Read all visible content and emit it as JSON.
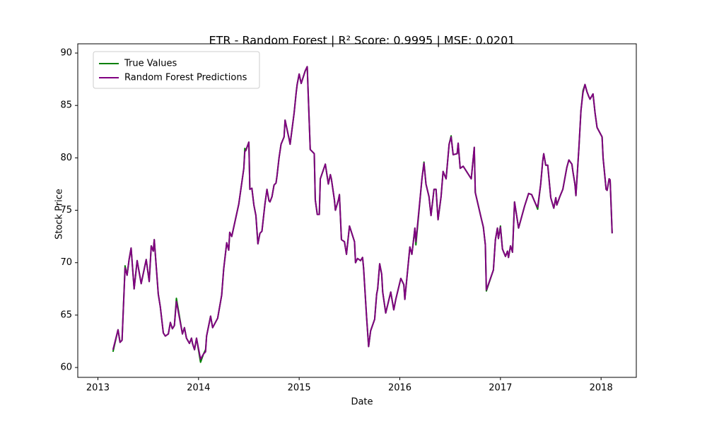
{
  "chart_data": {
    "type": "line",
    "title": "ETR - Random Forest | R² Score: 0.9995 | MSE: 0.0201",
    "xlabel": "Date",
    "ylabel": "Stock Price",
    "xlim": [
      2012.8,
      2018.35
    ],
    "ylim": [
      59.06,
      90.88
    ],
    "xticks": [
      2013,
      2014,
      2015,
      2016,
      2017,
      2018
    ],
    "yticks": [
      60,
      65,
      70,
      75,
      80,
      85,
      90
    ],
    "grid": false,
    "legend": "upper left",
    "x": [
      2013.15,
      2013.2,
      2013.22,
      2013.24,
      2013.27,
      2013.29,
      2013.31,
      2013.33,
      2013.36,
      2013.39,
      2013.43,
      2013.48,
      2013.51,
      2013.53,
      2013.55,
      2013.56,
      2013.6,
      2013.62,
      2013.65,
      2013.67,
      2013.7,
      2013.72,
      2013.74,
      2013.76,
      2013.78,
      2013.84,
      2013.86,
      2013.88,
      2013.91,
      2013.93,
      2013.94,
      2013.96,
      2013.98,
      2014.02,
      2014.05,
      2014.07,
      2014.08,
      2014.12,
      2014.14,
      2014.19,
      2014.23,
      2014.25,
      2014.28,
      2014.3,
      2014.31,
      2014.33,
      2014.4,
      2014.45,
      2014.46,
      2014.47,
      2014.5,
      2014.51,
      2014.53,
      2014.55,
      2014.57,
      2014.59,
      2014.61,
      2014.63,
      2014.66,
      2014.68,
      2014.7,
      2014.71,
      2014.73,
      2014.75,
      2014.77,
      2014.78,
      2014.8,
      2014.82,
      2014.85,
      2014.86,
      2014.9,
      2014.91,
      2014.95,
      2014.97,
      2014.98,
      2015.0,
      2015.02,
      2015.04,
      2015.06,
      2015.08,
      2015.11,
      2015.15,
      2015.16,
      2015.18,
      2015.2,
      2015.21,
      2015.26,
      2015.29,
      2015.31,
      2015.32,
      2015.35,
      2015.36,
      2015.39,
      2015.4,
      2015.42,
      2015.45,
      2015.47,
      2015.5,
      2015.55,
      2015.56,
      2015.58,
      2015.61,
      2015.63,
      2015.64,
      2015.67,
      2015.69,
      2015.71,
      2015.75,
      2015.77,
      2015.78,
      2015.8,
      2015.82,
      2015.83,
      2015.86,
      2015.89,
      2015.91,
      2015.94,
      2015.96,
      2016.01,
      2016.04,
      2016.05,
      2016.08,
      2016.1,
      2016.12,
      2016.15,
      2016.16,
      2016.22,
      2016.24,
      2016.26,
      2016.29,
      2016.31,
      2016.34,
      2016.36,
      2016.38,
      2016.41,
      2016.43,
      2016.46,
      2016.49,
      2016.51,
      2016.53,
      2016.57,
      2016.58,
      2016.6,
      2016.63,
      2016.71,
      2016.74,
      2016.75,
      2016.81,
      2016.83,
      2016.85,
      2016.86,
      2016.93,
      2016.95,
      2016.97,
      2016.98,
      2017.0,
      2017.02,
      2017.05,
      2017.07,
      2017.08,
      2017.1,
      2017.12,
      2017.14,
      2017.18,
      2017.2,
      2017.24,
      2017.28,
      2017.31,
      2017.35,
      2017.37,
      2017.4,
      2017.42,
      2017.43,
      2017.45,
      2017.47,
      2017.5,
      2017.53,
      2017.55,
      2017.56,
      2017.59,
      2017.62,
      2017.66,
      2017.68,
      2017.71,
      2017.72,
      2017.74,
      2017.75,
      2017.78,
      2017.8,
      2017.82,
      2017.84,
      2017.86,
      2017.88,
      2017.89,
      2017.92,
      2017.94,
      2017.96,
      2018.01,
      2018.02,
      2018.05,
      2018.06,
      2018.08,
      2018.09,
      2018.11
    ],
    "series": [
      {
        "name": "True Values",
        "color": "#008000",
        "values": [
          61.5,
          63.6,
          62.4,
          62.6,
          69.7,
          68.8,
          70.3,
          71.4,
          67.5,
          70.2,
          68.0,
          70.3,
          68.2,
          71.6,
          71.1,
          72.2,
          67.0,
          65.8,
          63.3,
          63.0,
          63.2,
          64.3,
          63.7,
          64.0,
          66.6,
          63.2,
          63.8,
          62.8,
          62.3,
          62.8,
          62.3,
          61.7,
          62.8,
          60.5,
          61.3,
          61.7,
          63.0,
          64.9,
          63.8,
          64.7,
          66.9,
          69.4,
          71.9,
          71.2,
          72.9,
          72.5,
          75.6,
          79.0,
          80.9,
          80.7,
          81.5,
          77.0,
          77.1,
          75.5,
          74.5,
          71.8,
          72.8,
          73.0,
          75.6,
          77.0,
          75.9,
          75.8,
          76.3,
          77.4,
          77.6,
          78.3,
          80.0,
          81.3,
          82.0,
          83.6,
          81.8,
          81.3,
          84.3,
          86.2,
          87.0,
          88.0,
          87.1,
          87.7,
          88.3,
          88.7,
          80.8,
          80.4,
          76.0,
          74.6,
          74.6,
          78.0,
          79.4,
          77.5,
          78.4,
          78.0,
          76.0,
          75.0,
          76.0,
          76.5,
          72.2,
          72.0,
          70.8,
          73.5,
          72.0,
          70.0,
          70.4,
          70.2,
          70.5,
          69.5,
          64.8,
          62.0,
          63.5,
          64.6,
          67.0,
          67.5,
          69.9,
          68.9,
          67.2,
          65.2,
          66.4,
          67.2,
          65.5,
          66.5,
          68.5,
          67.9,
          66.5,
          69.5,
          71.5,
          70.8,
          73.3,
          71.7,
          78.0,
          79.6,
          77.5,
          76.3,
          74.5,
          77.0,
          77.0,
          74.1,
          76.3,
          78.7,
          78.0,
          81.3,
          82.1,
          80.3,
          80.4,
          81.4,
          79.0,
          79.2,
          78.0,
          81.0,
          76.7,
          74.2,
          73.4,
          71.7,
          67.3,
          69.3,
          72.2,
          73.3,
          72.3,
          73.5,
          71.3,
          70.6,
          71.1,
          70.5,
          71.6,
          71.0,
          75.8,
          73.3,
          74.0,
          75.4,
          76.6,
          76.5,
          75.6,
          75.1,
          77.5,
          79.7,
          80.4,
          79.3,
          79.3,
          76.2,
          75.2,
          76.2,
          75.5,
          76.3,
          77.0,
          79.1,
          79.8,
          79.4,
          78.7,
          77.5,
          76.4,
          81.0,
          84.5,
          86.4,
          87.0,
          86.3,
          85.8,
          85.6,
          86.1,
          84.3,
          82.9,
          82.0,
          80.0,
          77.0,
          76.9,
          78.0,
          77.9,
          72.8
        ]
      },
      {
        "name": "Random Forest Predictions",
        "color": "#800080",
        "values": [
          61.7,
          63.6,
          62.4,
          62.6,
          69.5,
          68.8,
          70.3,
          71.4,
          67.5,
          70.2,
          68.0,
          70.3,
          68.2,
          71.6,
          71.1,
          72.2,
          67.0,
          65.8,
          63.3,
          63.0,
          63.2,
          64.3,
          63.7,
          64.0,
          66.3,
          63.2,
          63.8,
          62.8,
          62.3,
          62.8,
          62.3,
          61.7,
          62.8,
          60.8,
          61.3,
          61.5,
          63.0,
          64.9,
          63.8,
          64.7,
          66.9,
          69.4,
          71.9,
          71.2,
          72.9,
          72.5,
          75.6,
          79.0,
          80.6,
          80.7,
          81.5,
          77.0,
          77.1,
          75.5,
          74.5,
          71.8,
          72.8,
          73.0,
          75.6,
          77.0,
          75.9,
          75.8,
          76.3,
          77.4,
          77.6,
          78.3,
          80.0,
          81.3,
          82.0,
          83.6,
          81.8,
          81.3,
          84.3,
          86.2,
          87.0,
          88.0,
          87.1,
          87.7,
          88.3,
          88.7,
          80.8,
          80.4,
          76.0,
          74.6,
          74.6,
          78.0,
          79.4,
          77.5,
          78.4,
          78.0,
          76.0,
          75.0,
          76.0,
          76.5,
          72.2,
          72.0,
          70.8,
          73.5,
          72.0,
          70.0,
          70.4,
          70.2,
          70.5,
          69.5,
          64.8,
          62.0,
          63.5,
          64.6,
          67.0,
          67.5,
          69.9,
          68.9,
          67.2,
          65.2,
          66.4,
          67.2,
          65.5,
          66.5,
          68.5,
          67.9,
          66.5,
          69.5,
          71.5,
          70.8,
          73.3,
          72.0,
          78.0,
          79.5,
          77.5,
          76.3,
          74.5,
          77.0,
          77.0,
          74.1,
          76.3,
          78.7,
          78.0,
          81.3,
          82.0,
          80.3,
          80.4,
          81.4,
          79.0,
          79.2,
          78.0,
          81.0,
          76.7,
          74.2,
          73.4,
          71.7,
          67.4,
          69.3,
          72.2,
          73.3,
          72.3,
          73.4,
          71.3,
          70.6,
          71.1,
          70.5,
          71.6,
          71.0,
          75.8,
          73.3,
          74.0,
          75.4,
          76.6,
          76.5,
          75.6,
          75.3,
          77.5,
          79.7,
          80.4,
          79.3,
          79.3,
          76.2,
          75.2,
          76.2,
          75.5,
          76.3,
          77.0,
          79.1,
          79.8,
          79.4,
          78.7,
          77.5,
          76.4,
          81.0,
          84.5,
          86.2,
          87.0,
          86.3,
          85.8,
          85.6,
          86.1,
          84.3,
          82.9,
          82.0,
          80.0,
          77.0,
          76.9,
          78.0,
          77.9,
          72.8
        ]
      }
    ]
  }
}
